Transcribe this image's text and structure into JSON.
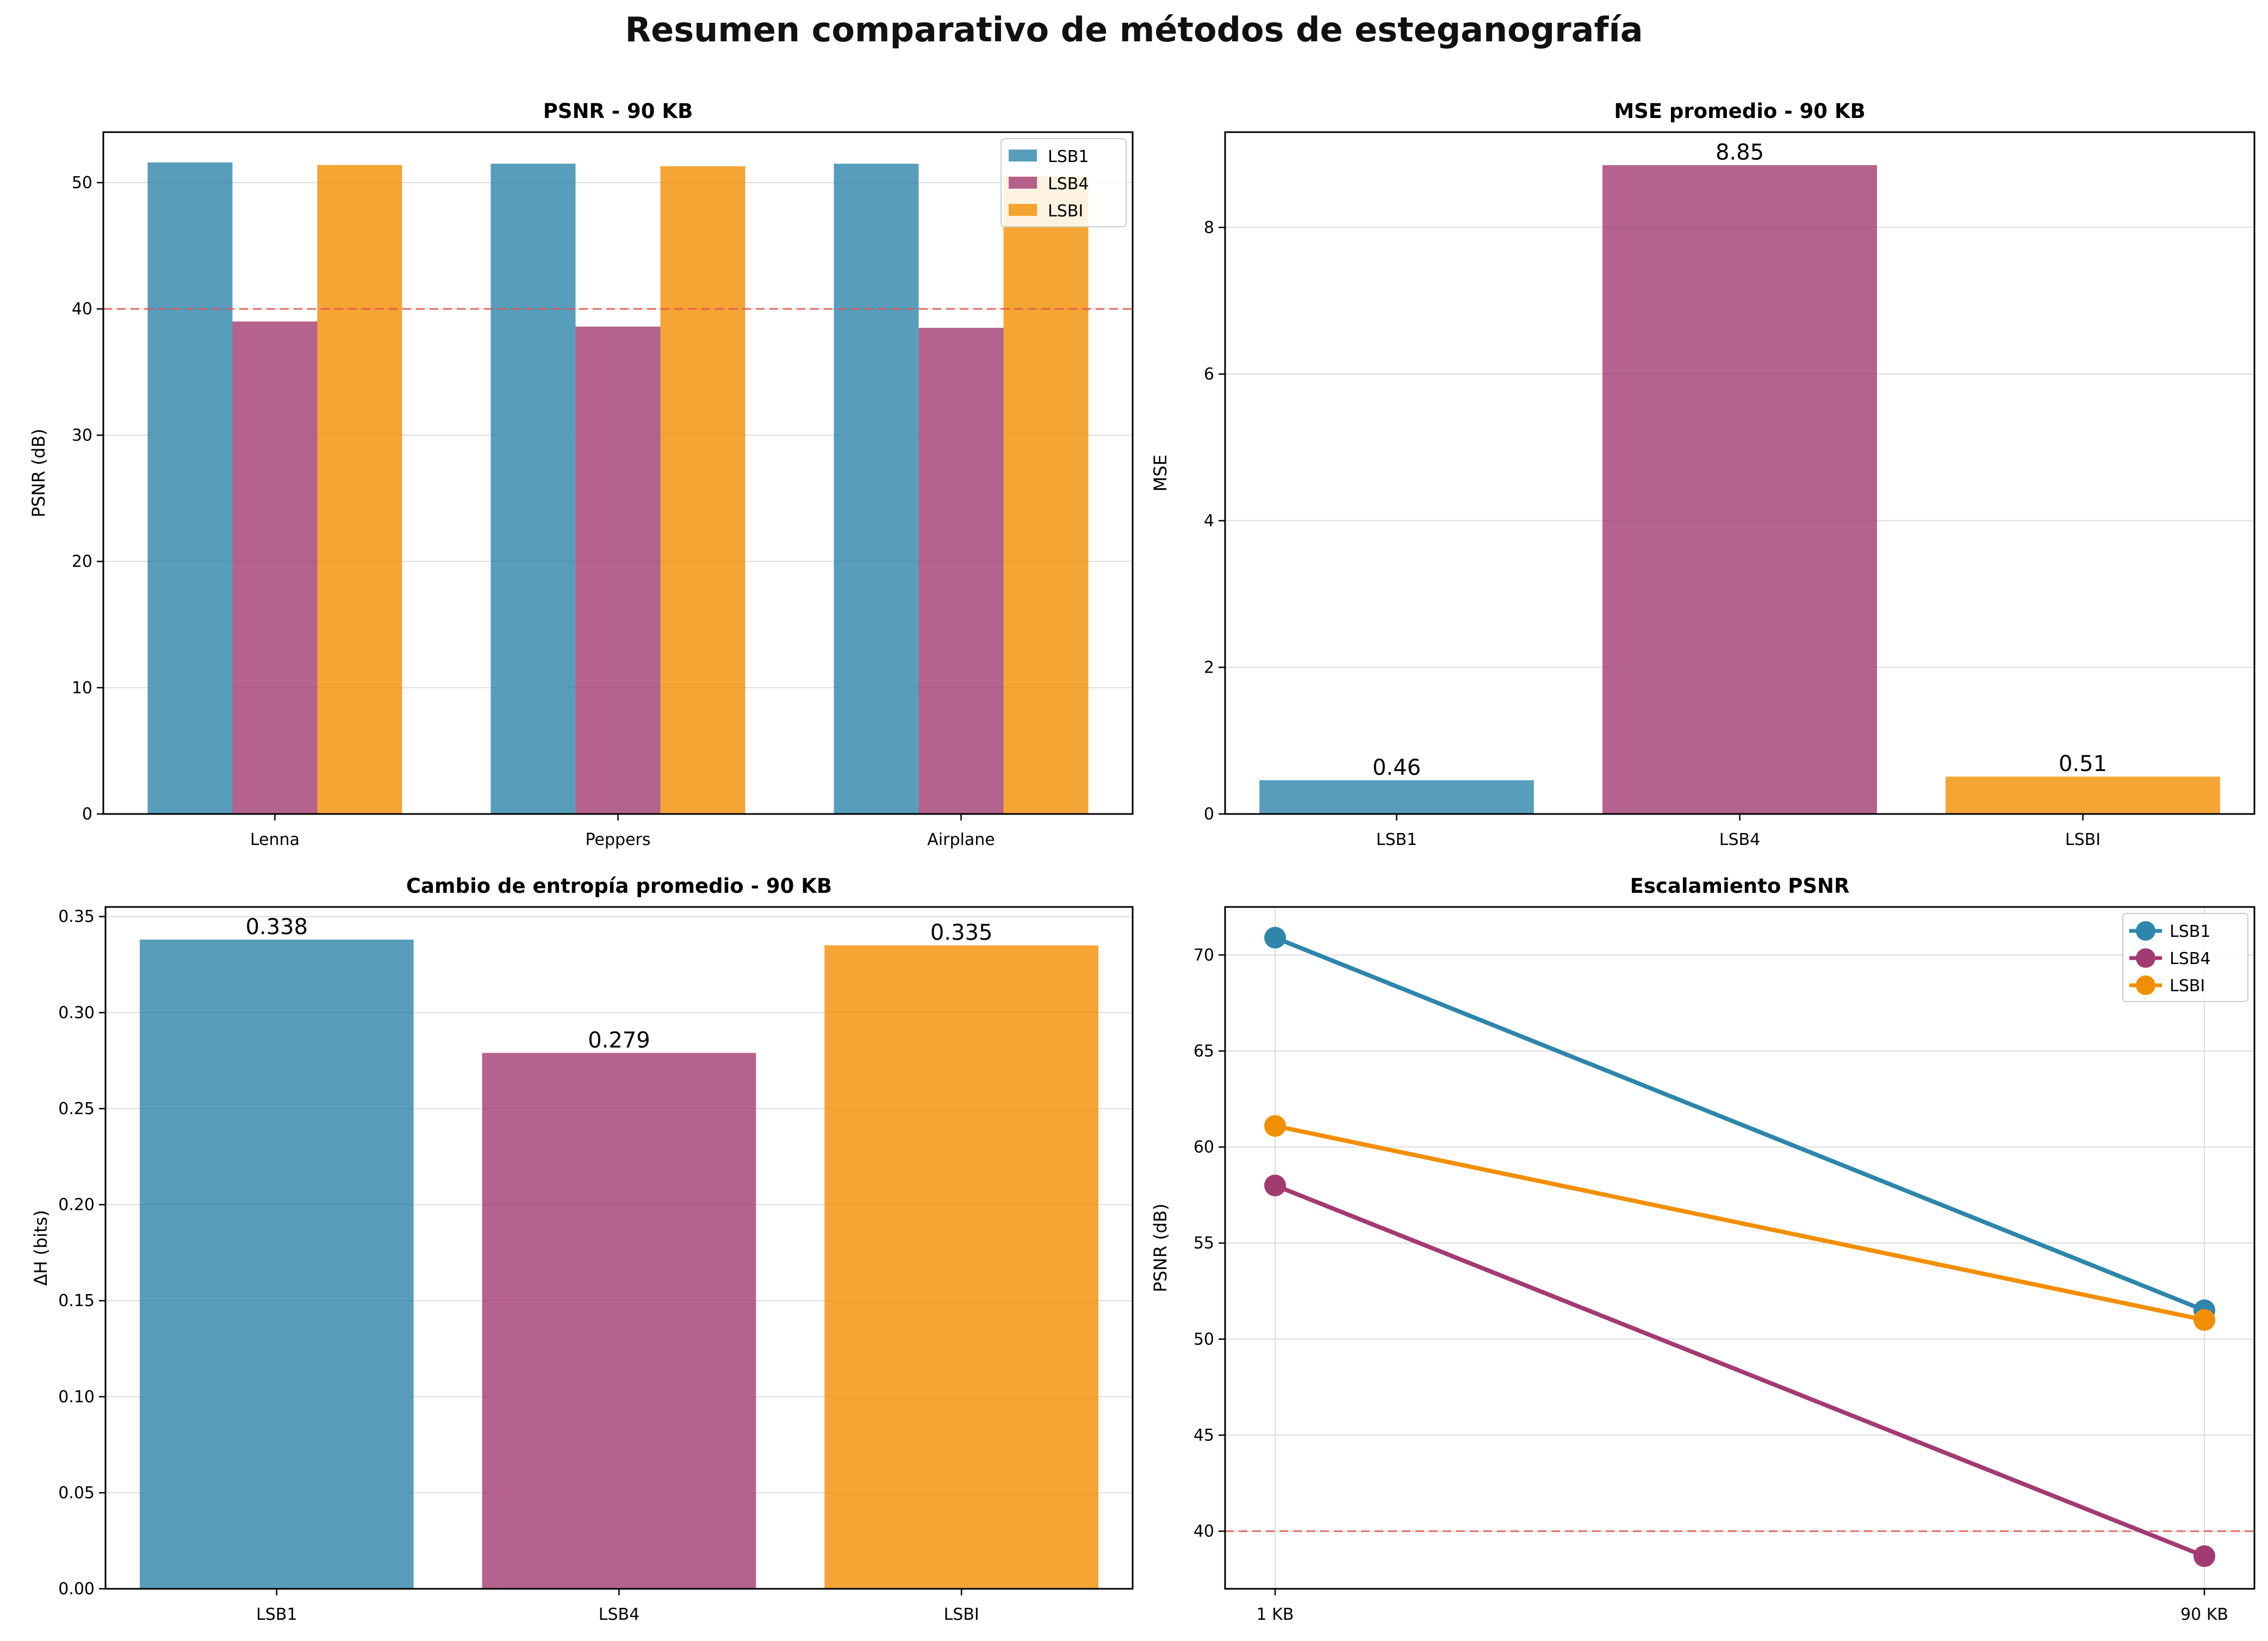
{
  "figure": {
    "title": "Resumen comparativo de métodos de esteganografía"
  },
  "colors": {
    "LSB1": "#2E86AB",
    "LSB4": "#A23B72",
    "LSBI": "#F18F01",
    "threshold": "#e05555",
    "grid": "#dddddd"
  },
  "chart_data": [
    {
      "id": "psnr",
      "type": "bar",
      "title": "PSNR - 90 KB",
      "xlabel": "",
      "ylabel": "PSNR (dB)",
      "categories": [
        "Lenna",
        "Peppers",
        "Airplane"
      ],
      "series": [
        {
          "name": "LSB1",
          "values": [
            51.6,
            51.5,
            51.5
          ]
        },
        {
          "name": "LSB4",
          "values": [
            39.0,
            38.6,
            38.5
          ]
        },
        {
          "name": "LSBI",
          "values": [
            51.4,
            51.3,
            50.5
          ]
        }
      ],
      "ylim": [
        0,
        54
      ],
      "yticks": [
        0,
        10,
        20,
        30,
        40,
        50
      ],
      "reference_line": 40,
      "grid": true,
      "legend": "top-right"
    },
    {
      "id": "mse",
      "type": "bar",
      "title": "MSE promedio - 90 KB",
      "xlabel": "",
      "ylabel": "MSE",
      "categories": [
        "LSB1",
        "LSB4",
        "LSBI"
      ],
      "values": [
        0.46,
        8.85,
        0.51
      ],
      "data_labels": [
        "0.46",
        "8.85",
        "0.51"
      ],
      "ylim": [
        0,
        9.3
      ],
      "yticks": [
        0,
        2,
        4,
        6,
        8
      ],
      "grid": true
    },
    {
      "id": "entropy",
      "type": "bar",
      "title": "Cambio de entropía promedio - 90 KB",
      "xlabel": "",
      "ylabel": "ΔH (bits)",
      "categories": [
        "LSB1",
        "LSB4",
        "LSBI"
      ],
      "values": [
        0.338,
        0.279,
        0.335
      ],
      "data_labels": [
        "0.338",
        "0.279",
        "0.335"
      ],
      "ylim": [
        0,
        0.355
      ],
      "yticks": [
        0.0,
        0.05,
        0.1,
        0.15,
        0.2,
        0.25,
        0.3,
        0.35
      ],
      "ytick_labels": [
        "0.00",
        "0.05",
        "0.10",
        "0.15",
        "0.20",
        "0.25",
        "0.30",
        "0.35"
      ],
      "grid": true
    },
    {
      "id": "scaling",
      "type": "line",
      "title": "Escalamiento PSNR",
      "xlabel": "",
      "ylabel": "PSNR (dB)",
      "x": [
        "1 KB",
        "90 KB"
      ],
      "series": [
        {
          "name": "LSB1",
          "values": [
            70.9,
            51.5
          ]
        },
        {
          "name": "LSB4",
          "values": [
            58.0,
            38.7
          ]
        },
        {
          "name": "LSBI",
          "values": [
            61.1,
            51.0
          ]
        }
      ],
      "ylim": [
        37.0,
        72.5
      ],
      "yticks": [
        40,
        45,
        50,
        55,
        60,
        65,
        70
      ],
      "reference_line": 40,
      "grid": true,
      "legend": "top-right"
    }
  ]
}
